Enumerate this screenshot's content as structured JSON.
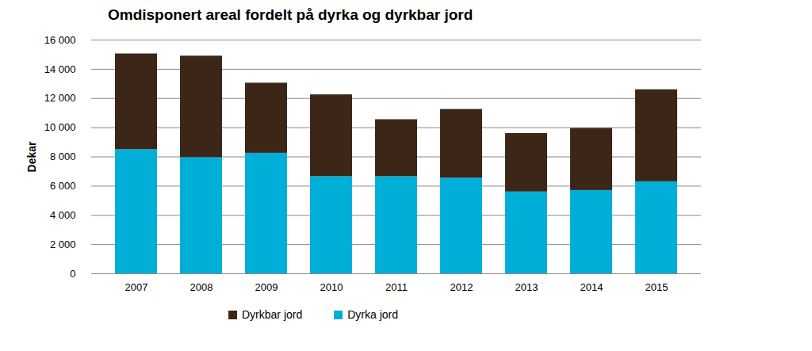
{
  "chart_data": {
    "type": "bar",
    "stacked": true,
    "title": "Omdisponert areal fordelt på dyrka og dyrkbar jord",
    "y_label": "Dekar",
    "categories": [
      "2007",
      "2008",
      "2009",
      "2010",
      "2011",
      "2012",
      "2013",
      "2014",
      "2015"
    ],
    "series": [
      {
        "name": "Dyrkbar jord",
        "color": "#3b2618",
        "values": [
          6550,
          6950,
          4800,
          5600,
          3900,
          4700,
          4000,
          4250,
          6300
        ]
      },
      {
        "name": "Dyrka jord",
        "color": "#00afd8",
        "values": [
          8500,
          7950,
          8250,
          6650,
          6650,
          6550,
          5600,
          5700,
          6300
        ]
      }
    ],
    "ylim": [
      0,
      16000
    ],
    "yticks": [
      0,
      {
        "value": 2000,
        "label": "2 000"
      },
      {
        "value": 4000,
        "label": "4 000"
      },
      {
        "value": 6000,
        "label": "6 000"
      },
      {
        "value": 8000,
        "label": "8 000"
      },
      {
        "value": 10000,
        "label": "10 000"
      },
      {
        "value": 12000,
        "label": "12 000"
      },
      {
        "value": 14000,
        "label": "14 000"
      },
      {
        "value": 16000,
        "label": "16 000"
      }
    ],
    "grid": true,
    "legend": "bottom"
  }
}
